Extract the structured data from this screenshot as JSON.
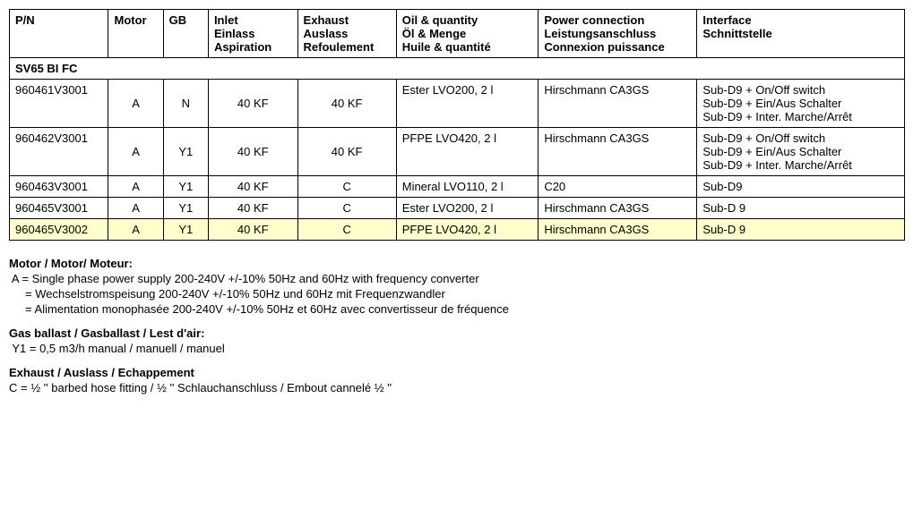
{
  "table": {
    "headers": {
      "pn": "P/N",
      "motor": "Motor",
      "gb": "GB",
      "inlet": "Inlet\nEinlass\nAspiration",
      "exhaust": "Exhaust\nAuslass\nRefoulement",
      "oil": "Oil & quantity\nÖl & Menge\nHuile & quantité",
      "power": "Power connection\nLeistungsanschluss\nConnexion puissance",
      "interface": "Interface\nSchnittstelle"
    },
    "section": "SV65 BI FC",
    "rows": [
      {
        "pn": "960461V3001",
        "motor": "A",
        "gb": "N",
        "inlet": "40 KF",
        "exhaust": "40 KF",
        "oil": "Ester LVO200, 2 l",
        "power": "Hirschmann CA3GS",
        "iface": "Sub-D9 + On/Off switch\nSub-D9 + Ein/Aus Schalter\nSub-D9 + Inter. Marche/Arrêt",
        "hl": false
      },
      {
        "pn": "960462V3001",
        "motor": "A",
        "gb": "Y1",
        "inlet": "40 KF",
        "exhaust": "40 KF",
        "oil": "PFPE LVO420, 2 l",
        "power": "Hirschmann CA3GS",
        "iface": "Sub-D9 + On/Off switch\nSub-D9 + Ein/Aus Schalter\nSub-D9 + Inter. Marche/Arrêt",
        "hl": false
      },
      {
        "pn": "960463V3001",
        "motor": "A",
        "gb": "Y1",
        "inlet": "40 KF",
        "exhaust": "C",
        "oil": "Mineral LVO110, 2 l",
        "power": "C20",
        "iface": "Sub-D9",
        "hl": false
      },
      {
        "pn": "960465V3001",
        "motor": "A",
        "gb": "Y1",
        "inlet": "40 KF",
        "exhaust": "C",
        "oil": "Ester LVO200, 2 l",
        "power": "Hirschmann CA3GS",
        "iface": "Sub-D 9",
        "hl": false
      },
      {
        "pn": "960465V3002",
        "motor": "A",
        "gb": "Y1",
        "inlet": "40 KF",
        "exhaust": "C",
        "oil": "PFPE LVO420, 2 l",
        "power": "Hirschmann CA3GS",
        "iface": "Sub-D 9",
        "hl": true
      }
    ]
  },
  "notes": {
    "motor_hdr": "Motor / Motor/ Moteur:",
    "motor_l1": " A = Single phase power supply 200-240V +/-10% 50Hz and 60Hz with frequency converter",
    "motor_l2": "     = Wechselstromspeisung 200-240V +/-10% 50Hz und 60Hz mit Frequenzwandler",
    "motor_l3": "     = Alimentation monophasée 200-240V +/-10% 50Hz et 60Hz avec convertisseur de fréquence",
    "gas_hdr": "Gas ballast / Gasballast / Lest d'air:",
    "gas_l1": " Y1 = 0,5 m3/h manual / manuell / manuel",
    "exh_hdr": "Exhaust / Auslass / Echappement",
    "exh_l1": "C = ½ '' barbed hose fitting / ½ '' Schlauchanschluss / Embout cannelé ½ ''"
  }
}
